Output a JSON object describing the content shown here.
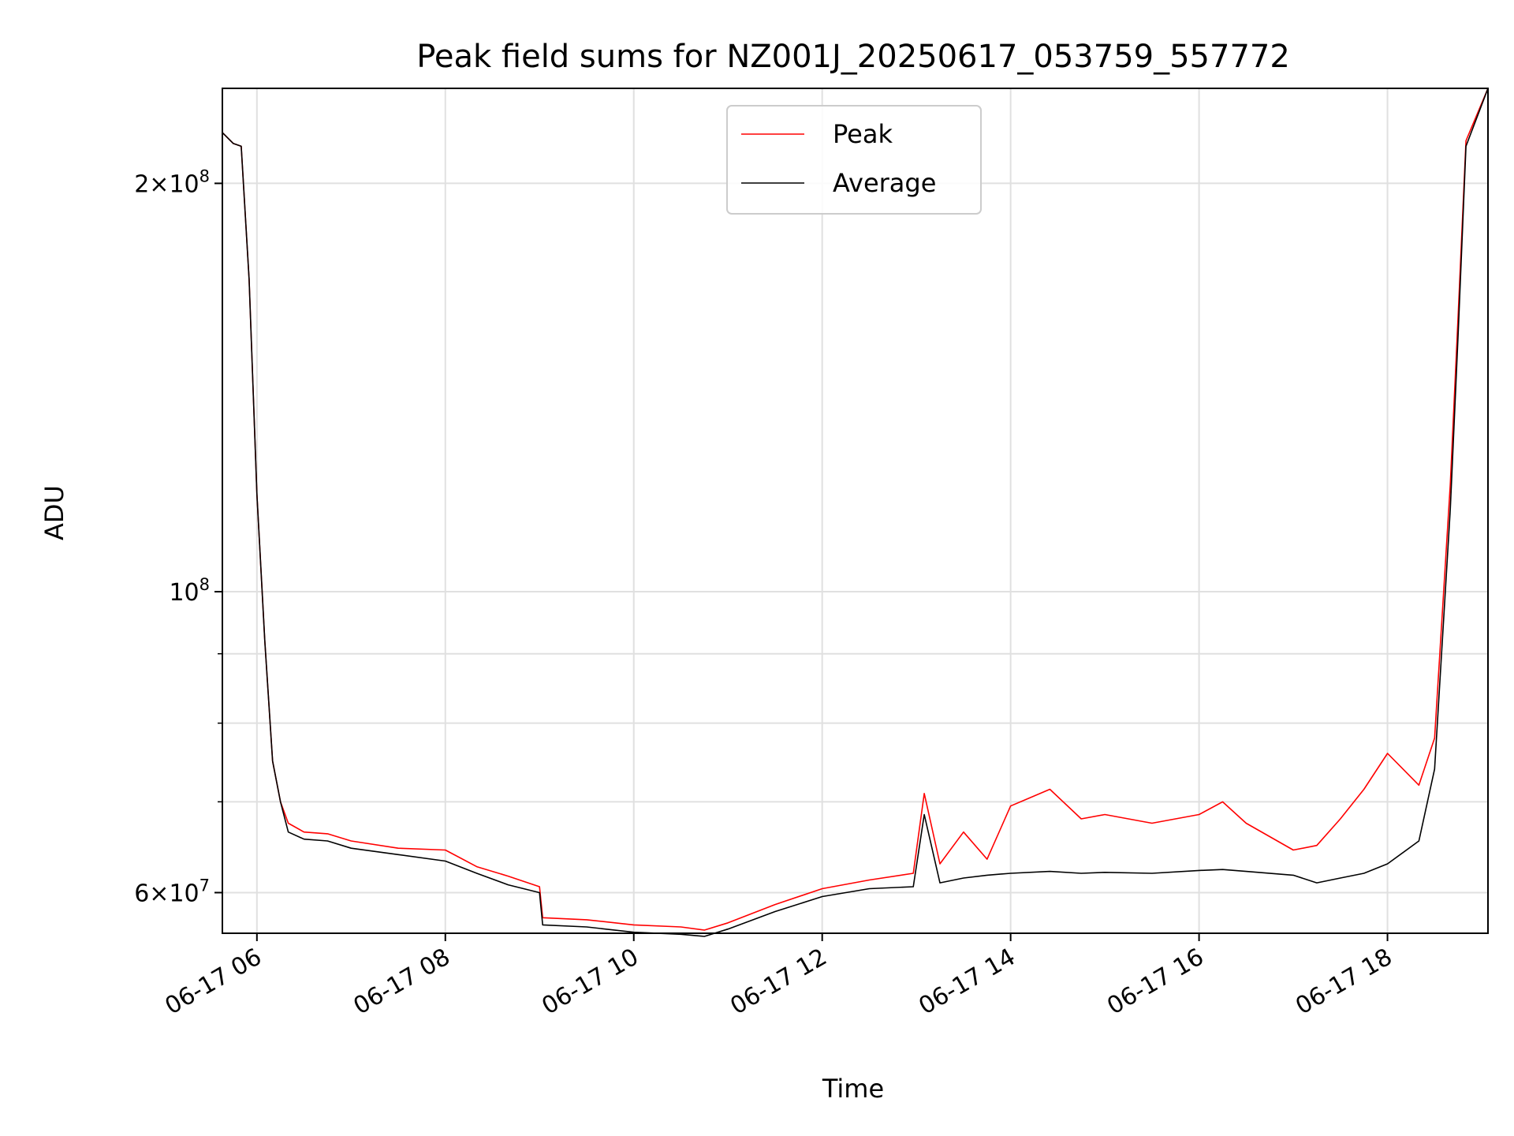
{
  "chart_data": {
    "type": "line",
    "title": "Peak field sums for NZ001J_20250617_053759_557772",
    "xlabel": "Time",
    "ylabel": "ADU",
    "yscale": "log",
    "xlim": [
      "2025-06-17 05:38",
      "2025-06-17 19:04"
    ],
    "ylim": [
      56000000,
      235000000
    ],
    "grid": true,
    "legend_position": "upper center",
    "x_ticks": [
      {
        "label": "06-17 06",
        "value": "2025-06-17 06:00"
      },
      {
        "label": "06-17 08",
        "value": "2025-06-17 08:00"
      },
      {
        "label": "06-17 10",
        "value": "2025-06-17 10:00"
      },
      {
        "label": "06-17 12",
        "value": "2025-06-17 12:00"
      },
      {
        "label": "06-17 14",
        "value": "2025-06-17 14:00"
      },
      {
        "label": "06-17 16",
        "value": "2025-06-17 16:00"
      },
      {
        "label": "06-17 18",
        "value": "2025-06-17 18:00"
      }
    ],
    "y_ticks": [
      {
        "base": "6",
        "exp": "7",
        "value": 60000000
      },
      {
        "base": "",
        "exp": "8",
        "value": 100000000
      },
      {
        "base": "2",
        "exp": "8",
        "value": 200000000
      }
    ],
    "y_minor_ticks": [
      70000000,
      80000000,
      90000000
    ],
    "series": [
      {
        "name": "Peak",
        "color": "#ff0000",
        "x": [
          "2025-06-17 05:38",
          "2025-06-17 05:45",
          "2025-06-17 05:50",
          "2025-06-17 05:55",
          "2025-06-17 06:00",
          "2025-06-17 06:05",
          "2025-06-17 06:10",
          "2025-06-17 06:15",
          "2025-06-17 06:20",
          "2025-06-17 06:30",
          "2025-06-17 06:45",
          "2025-06-17 07:00",
          "2025-06-17 07:30",
          "2025-06-17 08:00",
          "2025-06-17 08:20",
          "2025-06-17 08:40",
          "2025-06-17 09:00",
          "2025-06-17 09:02",
          "2025-06-17 09:30",
          "2025-06-17 10:00",
          "2025-06-17 10:30",
          "2025-06-17 10:45",
          "2025-06-17 11:00",
          "2025-06-17 11:30",
          "2025-06-17 12:00",
          "2025-06-17 12:30",
          "2025-06-17 12:58",
          "2025-06-17 13:05",
          "2025-06-17 13:15",
          "2025-06-17 13:30",
          "2025-06-17 13:45",
          "2025-06-17 14:00",
          "2025-06-17 14:25",
          "2025-06-17 14:45",
          "2025-06-17 15:00",
          "2025-06-17 15:30",
          "2025-06-17 16:00",
          "2025-06-17 16:15",
          "2025-06-17 16:30",
          "2025-06-17 17:00",
          "2025-06-17 17:15",
          "2025-06-17 17:30",
          "2025-06-17 17:45",
          "2025-06-17 18:00",
          "2025-06-17 18:20",
          "2025-06-17 18:30",
          "2025-06-17 18:40",
          "2025-06-17 18:45",
          "2025-06-17 18:50",
          "2025-06-17 19:04"
        ],
        "y": [
          218000000,
          214000000,
          213000000,
          170000000,
          118000000,
          92000000,
          75000000,
          70000000,
          67500000,
          66500000,
          66300000,
          65500000,
          64700000,
          64500000,
          62700000,
          61700000,
          60600000,
          57500000,
          57300000,
          56800000,
          56600000,
          56300000,
          57000000,
          58800000,
          60400000,
          61300000,
          62000000,
          71000000,
          63000000,
          66500000,
          63500000,
          69500000,
          71500000,
          68000000,
          68500000,
          67500000,
          68500000,
          70000000,
          67500000,
          64500000,
          65000000,
          68000000,
          71500000,
          76000000,
          72000000,
          78000000,
          120000000,
          160000000,
          215000000,
          235000000
        ]
      },
      {
        "name": "Average",
        "color": "#000000",
        "x": [
          "2025-06-17 05:38",
          "2025-06-17 05:45",
          "2025-06-17 05:50",
          "2025-06-17 05:55",
          "2025-06-17 06:00",
          "2025-06-17 06:05",
          "2025-06-17 06:10",
          "2025-06-17 06:15",
          "2025-06-17 06:20",
          "2025-06-17 06:30",
          "2025-06-17 06:45",
          "2025-06-17 07:00",
          "2025-06-17 07:30",
          "2025-06-17 08:00",
          "2025-06-17 08:20",
          "2025-06-17 08:40",
          "2025-06-17 09:00",
          "2025-06-17 09:02",
          "2025-06-17 09:30",
          "2025-06-17 10:00",
          "2025-06-17 10:30",
          "2025-06-17 10:45",
          "2025-06-17 11:00",
          "2025-06-17 11:30",
          "2025-06-17 12:00",
          "2025-06-17 12:30",
          "2025-06-17 12:58",
          "2025-06-17 13:05",
          "2025-06-17 13:15",
          "2025-06-17 13:30",
          "2025-06-17 13:45",
          "2025-06-17 14:00",
          "2025-06-17 14:25",
          "2025-06-17 14:45",
          "2025-06-17 15:00",
          "2025-06-17 15:30",
          "2025-06-17 16:00",
          "2025-06-17 16:15",
          "2025-06-17 16:30",
          "2025-06-17 17:00",
          "2025-06-17 17:15",
          "2025-06-17 17:30",
          "2025-06-17 17:45",
          "2025-06-17 18:00",
          "2025-06-17 18:20",
          "2025-06-17 18:30",
          "2025-06-17 18:40",
          "2025-06-17 18:45",
          "2025-06-17 18:50",
          "2025-06-17 19:04"
        ],
        "y": [
          218000000,
          214000000,
          213000000,
          170000000,
          118000000,
          92000000,
          75000000,
          70000000,
          66500000,
          65700000,
          65500000,
          64700000,
          64000000,
          63300000,
          62000000,
          60800000,
          60000000,
          56800000,
          56600000,
          56100000,
          55900000,
          55700000,
          56400000,
          58100000,
          59600000,
          60400000,
          60600000,
          68500000,
          61000000,
          61500000,
          61800000,
          62000000,
          62200000,
          62000000,
          62100000,
          62000000,
          62300000,
          62400000,
          62200000,
          61800000,
          61000000,
          61500000,
          62000000,
          63000000,
          65500000,
          74000000,
          115000000,
          155000000,
          213000000,
          235000000
        ]
      }
    ]
  }
}
